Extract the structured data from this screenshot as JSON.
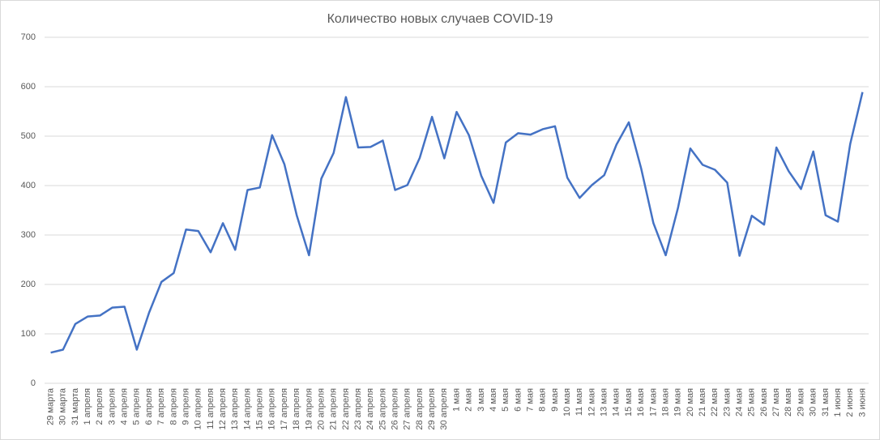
{
  "chart_data": {
    "type": "line",
    "title": "Количество новых случаев COVID-19",
    "categories": [
      "29 марта",
      "30 марта",
      "31 марта",
      "1 апреля",
      "2 апреля",
      "3 апреля",
      "4 апреля",
      "5 апреля",
      "6 апреля",
      "7 апреля",
      "8 апреля",
      "9 апреля",
      "10 апреля",
      "11 апреля",
      "12 апреля",
      "13 апреля",
      "14 апреля",
      "15 апреля",
      "16 апреля",
      "17 апреля",
      "18 апреля",
      "19 апреля",
      "20 апреля",
      "21 апреля",
      "22 апреля",
      "23 апреля",
      "24 апреля",
      "25 апреля",
      "26 апреля",
      "27 апреля",
      "28 апреля",
      "29 апреля",
      "30 апреля",
      "1 мая",
      "2 мая",
      "3 мая",
      "4 мая",
      "5 мая",
      "6 мая",
      "7 мая",
      "8 мая",
      "9 мая",
      "10 мая",
      "11 мая",
      "12 мая",
      "13 мая",
      "14 мая",
      "15 мая",
      "16 мая",
      "17 мая",
      "18 мая",
      "19 мая",
      "20 мая",
      "21 мая",
      "22 мая",
      "23 мая",
      "24 мая",
      "25 мая",
      "26 мая",
      "27 мая",
      "28 мая",
      "29 мая",
      "30 мая",
      "31 мая",
      "1 июня",
      "2 июня",
      "3 июня"
    ],
    "values": [
      62,
      68,
      120,
      135,
      137,
      153,
      155,
      68,
      143,
      205,
      223,
      311,
      308,
      265,
      324,
      270,
      391,
      396,
      502,
      443,
      340,
      259,
      414,
      466,
      579,
      477,
      478,
      491,
      391,
      401,
      456,
      539,
      455,
      549,
      502,
      420,
      365,
      487,
      506,
      503,
      514,
      520,
      416,
      375,
      401,
      421,
      483,
      528,
      435,
      324,
      259,
      355,
      475,
      442,
      432,
      406,
      258,
      339,
      321,
      477,
      429,
      393,
      469,
      340,
      327,
      484,
      589
    ],
    "color": "#4472c4",
    "ylim": [
      0,
      700
    ],
    "yticks": [
      0,
      100,
      200,
      300,
      400,
      500,
      600,
      700
    ],
    "grid": true
  }
}
